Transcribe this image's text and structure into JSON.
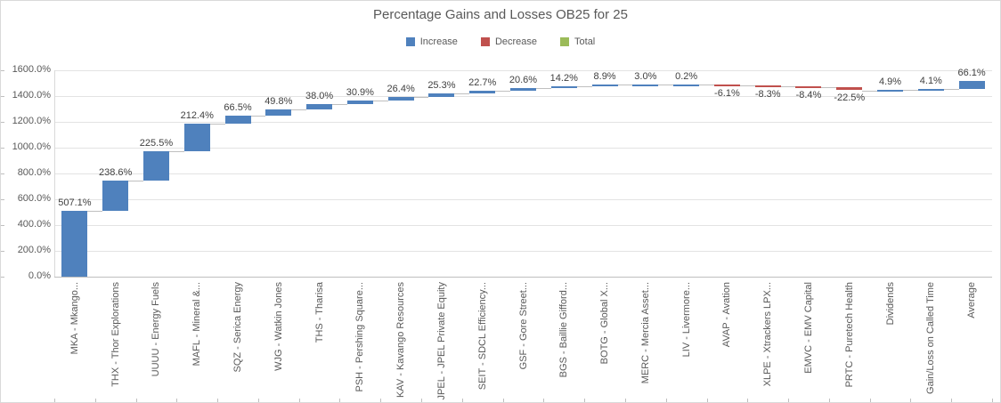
{
  "title": "Percentage Gains and Losses OB25 for 25",
  "legend": [
    {
      "label": "Increase",
      "color": "#4f81bd"
    },
    {
      "label": "Decrease",
      "color": "#c0504d"
    },
    {
      "label": "Total",
      "color": "#9bbb59"
    }
  ],
  "chart_data": {
    "type": "bar",
    "subtype": "waterfall",
    "title": "Percentage Gains and Losses OB25 for 25",
    "xlabel": "",
    "ylabel": "",
    "ylim": [
      0,
      1600
    ],
    "ytick_step": 200,
    "yticks": [
      "0.0%",
      "200.0%",
      "400.0%",
      "600.0%",
      "800.0%",
      "1000.0%",
      "1200.0%",
      "1400.0%",
      "1600.0%"
    ],
    "grid": true,
    "legend_position": "top",
    "categories": [
      "MKA - Mkango...",
      "THX - Thor Explorations",
      "UUUU - Energy Fuels",
      "MAFL - Mineral &...",
      "SQZ - Serica Energy",
      "WJG - Watkin Jones",
      "THS - Tharisa",
      "PSH - Pershing Square...",
      "KAV - Kavango Resources",
      "JPEL - JPEL Private Equity",
      "SEIT - SDCL Efficiency...",
      "GSF - Gore Street...",
      "BGS - Baillie Gifford...",
      "BOTG - Global X...",
      "MERC - Mercia Asset...",
      "LIV - Livermore...",
      "AVAP - Avation",
      "XLPE - Xtrackers LPX...",
      "EMVC - EMV Capital",
      "PRTC - Puretech Health",
      "Dividends",
      "Gain/Loss on Called Time",
      "Average"
    ],
    "values": [
      507.1,
      238.6,
      225.5,
      212.4,
      66.5,
      49.8,
      38.0,
      30.9,
      26.4,
      25.3,
      22.7,
      20.6,
      14.2,
      8.9,
      3.0,
      0.2,
      -6.1,
      -8.3,
      -8.4,
      -22.5,
      4.9,
      4.1,
      66.1
    ],
    "labels": [
      "507.1%",
      "238.6%",
      "225.5%",
      "212.4%",
      "66.5%",
      "49.8%",
      "38.0%",
      "30.9%",
      "26.4%",
      "25.3%",
      "22.7%",
      "20.6%",
      "14.2%",
      "8.9%",
      "3.0%",
      "0.2%",
      "-6.1%",
      "-8.3%",
      "-8.4%",
      "-22.5%",
      "4.9%",
      "4.1%",
      "66.1%"
    ],
    "colors": {
      "increase": "#4f81bd",
      "decrease": "#c0504d",
      "total": "#9bbb59",
      "gridline": "#e3e3e3",
      "connector": "#bfbfbf",
      "axis_text": "#595959",
      "label_text": "#404040",
      "border": "#d9d9d9"
    }
  }
}
